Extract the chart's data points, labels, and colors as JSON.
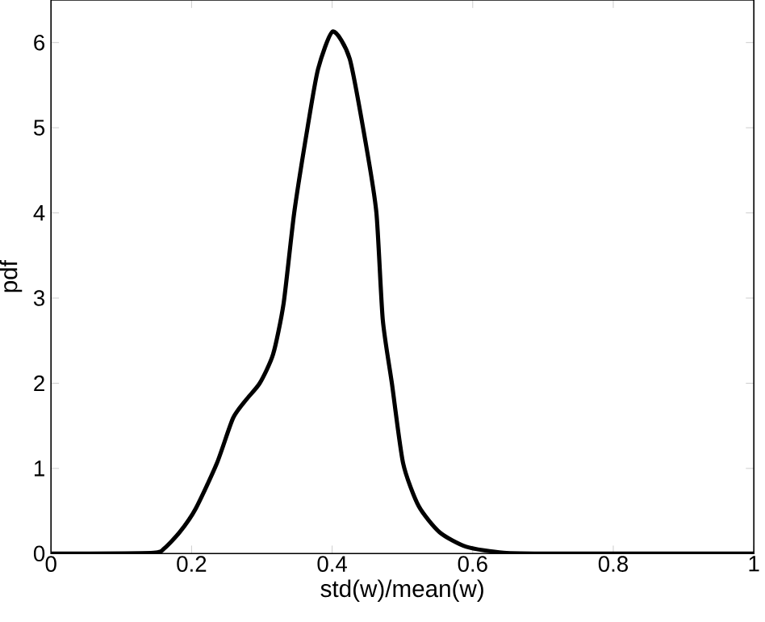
{
  "chart_data": {
    "type": "line",
    "xlabel": "std(w)/mean(w)",
    "ylabel": "pdf",
    "x": [
      0,
      0.04,
      0.146,
      0.161,
      0.183,
      0.206,
      0.236,
      0.259,
      0.278,
      0.297,
      0.316,
      0.331,
      0.346,
      0.365,
      0.38,
      0.401,
      0.425,
      0.448,
      0.463,
      0.472,
      0.485,
      0.501,
      0.523,
      0.553,
      0.591,
      0.644,
      0.72,
      1
    ],
    "values": [
      0,
      0,
      0.01,
      0.06,
      0.25,
      0.53,
      1.06,
      1.59,
      1.81,
      2.0,
      2.34,
      2.94,
      4.0,
      5.0,
      5.69,
      6.13,
      5.81,
      4.81,
      4.0,
      2.75,
      2.0,
      1.06,
      0.56,
      0.25,
      0.08,
      0.01,
      0,
      0
    ],
    "color": "#000000",
    "line_style": "solid",
    "xlim": [
      0,
      1
    ],
    "ylim": [
      0,
      6.5
    ],
    "xticks": [
      0,
      0.2,
      0.4,
      0.6,
      0.8,
      1
    ],
    "yticks": [
      0,
      1,
      2,
      3,
      4,
      5,
      6
    ]
  }
}
